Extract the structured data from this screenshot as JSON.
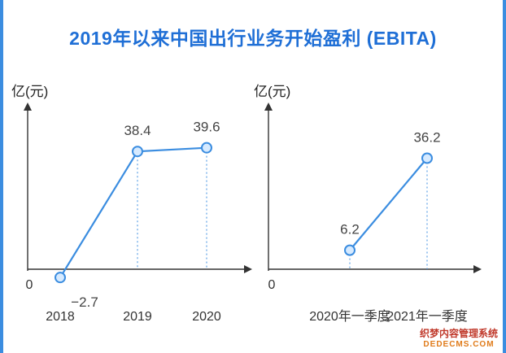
{
  "title": "2019年以来中国出行业务开始盈利 (EBITA)",
  "colors": {
    "line": "#3b8de0",
    "point_fill": "#d6eaff",
    "axis": "#333333"
  },
  "chart_data": [
    {
      "type": "line",
      "ylabel": "亿(元)",
      "zero_label": "0",
      "categories": [
        "2018",
        "2019",
        "2020"
      ],
      "values": [
        -2.7,
        38.4,
        39.6
      ],
      "value_labels": [
        "−2.7",
        "38.4",
        "39.6"
      ],
      "ylim": [
        -3,
        55
      ],
      "grid": false
    },
    {
      "type": "line",
      "ylabel": "亿(元)",
      "zero_label": "0",
      "categories": [
        "2020年一季度",
        "2021年一季度"
      ],
      "values": [
        6.2,
        36.2
      ],
      "value_labels": [
        "6.2",
        "36.2"
      ],
      "ylim": [
        -3,
        55
      ],
      "grid": false
    }
  ],
  "watermark": {
    "line1": "织梦内容管理系统",
    "line2": "DEDECMS.COM"
  }
}
